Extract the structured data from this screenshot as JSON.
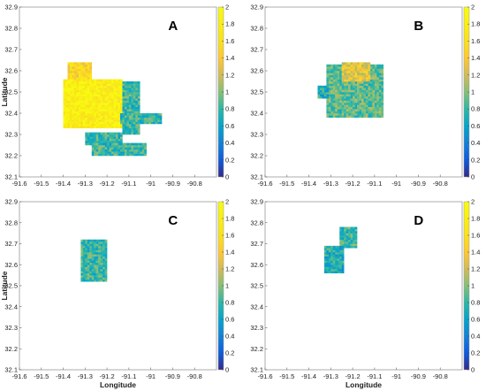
{
  "chart_data": [
    {
      "type": "heatmap",
      "panel_label": "A",
      "xlabel": "",
      "ylabel": "Latitude",
      "xlim": [
        -91.6,
        -90.7
      ],
      "ylim": [
        32.1,
        32.9
      ],
      "xticks": [
        "-91.6",
        "-91.5",
        "-91.4",
        "-91.3",
        "-91.2",
        "-91.1",
        "-91",
        "-90.9",
        "-90.8"
      ],
      "yticks": [
        "32.1",
        "32.2",
        "32.3",
        "32.4",
        "32.5",
        "32.6",
        "32.7",
        "32.8",
        "32.9"
      ],
      "colorbar": {
        "min": 0,
        "max": 2,
        "ticks": [
          "0",
          "0.2",
          "0.4",
          "0.6",
          "0.8",
          "1",
          "1.2",
          "1.4",
          "1.6",
          "1.8",
          "2"
        ]
      },
      "regions": [
        {
          "lon": [
            -91.38,
            -91.27
          ],
          "lat": [
            32.55,
            32.64
          ],
          "value": 1.5
        },
        {
          "lon": [
            -91.4,
            -91.13
          ],
          "lat": [
            32.33,
            32.56
          ],
          "value": 1.8
        },
        {
          "lon": [
            -91.13,
            -91.05
          ],
          "lat": [
            32.3,
            32.55
          ],
          "value": 0.8
        },
        {
          "lon": [
            -91.14,
            -90.95
          ],
          "lat": [
            32.35,
            32.4
          ],
          "value": 0.8
        },
        {
          "lon": [
            -91.3,
            -91.13
          ],
          "lat": [
            32.25,
            32.31
          ],
          "value": 0.8
        },
        {
          "lon": [
            -91.27,
            -91.02
          ],
          "lat": [
            32.2,
            32.26
          ],
          "value": 0.8
        }
      ]
    },
    {
      "type": "heatmap",
      "panel_label": "B",
      "xlabel": "",
      "ylabel": "",
      "xlim": [
        -91.6,
        -90.7
      ],
      "ylim": [
        32.1,
        32.9
      ],
      "xticks": [
        "-91.6",
        "-91.5",
        "-91.4",
        "-91.3",
        "-91.2",
        "-91.1",
        "-91",
        "-90.9",
        "-90.8"
      ],
      "yticks": [
        "32.1",
        "32.2",
        "32.3",
        "32.4",
        "32.5",
        "32.6",
        "32.7",
        "32.8",
        "32.9"
      ],
      "colorbar": {
        "min": 0,
        "max": 2,
        "ticks": [
          "0",
          "0.2",
          "0.4",
          "0.6",
          "0.8",
          "1",
          "1.2",
          "1.4",
          "1.6",
          "1.8",
          "2"
        ]
      },
      "regions": [
        {
          "lon": [
            -91.32,
            -91.06
          ],
          "lat": [
            32.38,
            32.63
          ],
          "value": 0.9
        },
        {
          "lon": [
            -91.25,
            -91.12
          ],
          "lat": [
            32.55,
            32.64
          ],
          "value": 1.3
        },
        {
          "lon": [
            -91.36,
            -91.31
          ],
          "lat": [
            32.47,
            32.53
          ],
          "value": 0.7
        }
      ]
    },
    {
      "type": "heatmap",
      "panel_label": "C",
      "xlabel": "Longitude",
      "ylabel": "Latitude",
      "xlim": [
        -91.6,
        -90.7
      ],
      "ylim": [
        32.1,
        32.9
      ],
      "xticks": [
        "-91.6",
        "-91.5",
        "-91.4",
        "-91.3",
        "-91.2",
        "-91.1",
        "-91",
        "-90.9",
        "-90.8"
      ],
      "yticks": [
        "32.1",
        "32.2",
        "32.3",
        "32.4",
        "32.5",
        "32.6",
        "32.7",
        "32.8",
        "32.9"
      ],
      "colorbar": {
        "min": 0,
        "max": 2,
        "ticks": [
          "0",
          "0.2",
          "0.4",
          "0.6",
          "0.8",
          "1",
          "1.2",
          "1.4",
          "1.6",
          "1.8",
          "2"
        ]
      },
      "regions": [
        {
          "lon": [
            -91.32,
            -91.2
          ],
          "lat": [
            32.52,
            32.72
          ],
          "value": 0.8
        }
      ]
    },
    {
      "type": "heatmap",
      "panel_label": "D",
      "xlabel": "Longitude",
      "ylabel": "",
      "xlim": [
        -91.6,
        -90.7
      ],
      "ylim": [
        32.1,
        32.9
      ],
      "xticks": [
        "-91.6",
        "-91.5",
        "-91.4",
        "-91.3",
        "-91.2",
        "-91.1",
        "-91",
        "-90.9",
        "-90.8"
      ],
      "yticks": [
        "32.1",
        "32.2",
        "32.3",
        "32.4",
        "32.5",
        "32.6",
        "32.7",
        "32.8",
        "32.9"
      ],
      "colorbar": {
        "min": 0,
        "max": 2,
        "ticks": [
          "0",
          "0.2",
          "0.4",
          "0.6",
          "0.8",
          "1",
          "1.2",
          "1.4",
          "1.6",
          "1.8",
          "2"
        ]
      },
      "regions": [
        {
          "lon": [
            -91.26,
            -91.18
          ],
          "lat": [
            32.68,
            32.78
          ],
          "value": 0.8
        },
        {
          "lon": [
            -91.33,
            -91.24
          ],
          "lat": [
            32.56,
            32.69
          ],
          "value": 0.7
        }
      ]
    }
  ]
}
